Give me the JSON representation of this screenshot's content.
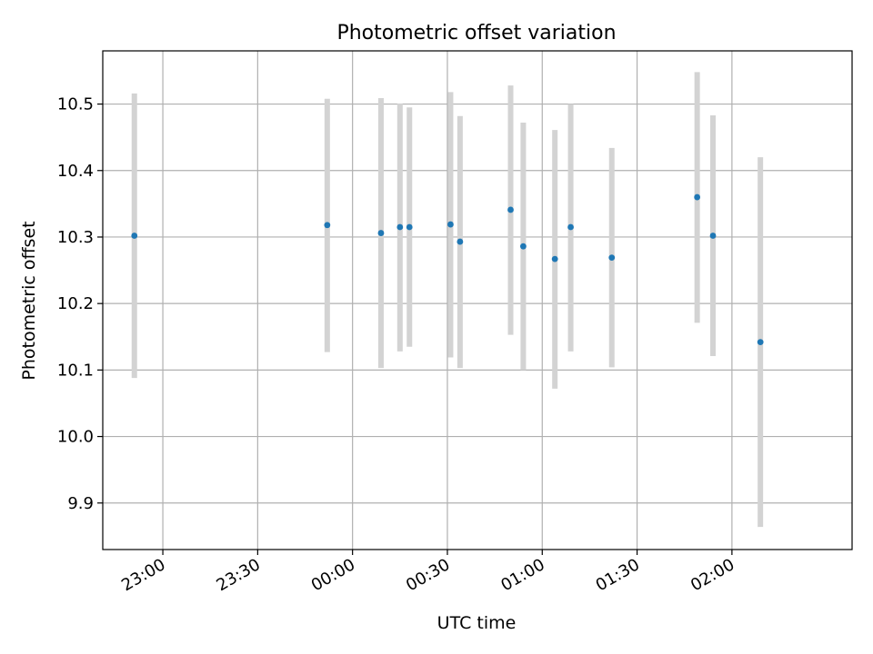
{
  "chart_data": {
    "type": "scatter",
    "title": "Photometric offset variation",
    "xlabel": "UTC time",
    "ylabel": "Photometric offset",
    "grid": true,
    "xlim": [
      "22:41",
      "02:38"
    ],
    "ylim": [
      9.83,
      10.58
    ],
    "x_ticks": [
      "23:00",
      "23:30",
      "00:00",
      "00:30",
      "01:00",
      "01:30",
      "02:00"
    ],
    "y_ticks": [
      "9.9",
      "10.0",
      "10.1",
      "10.2",
      "10.3",
      "10.4",
      "10.5"
    ],
    "series": [
      {
        "marker_color": "#1f77b4",
        "errorbar_color": "#d3d3d3",
        "points": [
          {
            "x": "22:51",
            "y": 10.302,
            "y_low": 10.088,
            "y_high": 10.516
          },
          {
            "x": "23:52",
            "y": 10.318,
            "y_low": 10.127,
            "y_high": 10.508
          },
          {
            "x": "00:09",
            "y": 10.306,
            "y_low": 10.103,
            "y_high": 10.509
          },
          {
            "x": "00:15",
            "y": 10.315,
            "y_low": 10.128,
            "y_high": 10.501
          },
          {
            "x": "00:18",
            "y": 10.315,
            "y_low": 10.135,
            "y_high": 10.495
          },
          {
            "x": "00:31",
            "y": 10.319,
            "y_low": 10.119,
            "y_high": 10.518
          },
          {
            "x": "00:34",
            "y": 10.293,
            "y_low": 10.103,
            "y_high": 10.482
          },
          {
            "x": "00:50",
            "y": 10.341,
            "y_low": 10.153,
            "y_high": 10.528
          },
          {
            "x": "00:54",
            "y": 10.286,
            "y_low": 10.1,
            "y_high": 10.472
          },
          {
            "x": "01:04",
            "y": 10.267,
            "y_low": 10.072,
            "y_high": 10.461
          },
          {
            "x": "01:09",
            "y": 10.315,
            "y_low": 10.128,
            "y_high": 10.5
          },
          {
            "x": "01:22",
            "y": 10.269,
            "y_low": 10.104,
            "y_high": 10.434
          },
          {
            "x": "01:49",
            "y": 10.36,
            "y_low": 10.171,
            "y_high": 10.548
          },
          {
            "x": "01:54",
            "y": 10.302,
            "y_low": 10.121,
            "y_high": 10.483
          },
          {
            "x": "02:09",
            "y": 10.142,
            "y_low": 9.864,
            "y_high": 10.42
          }
        ]
      }
    ]
  }
}
